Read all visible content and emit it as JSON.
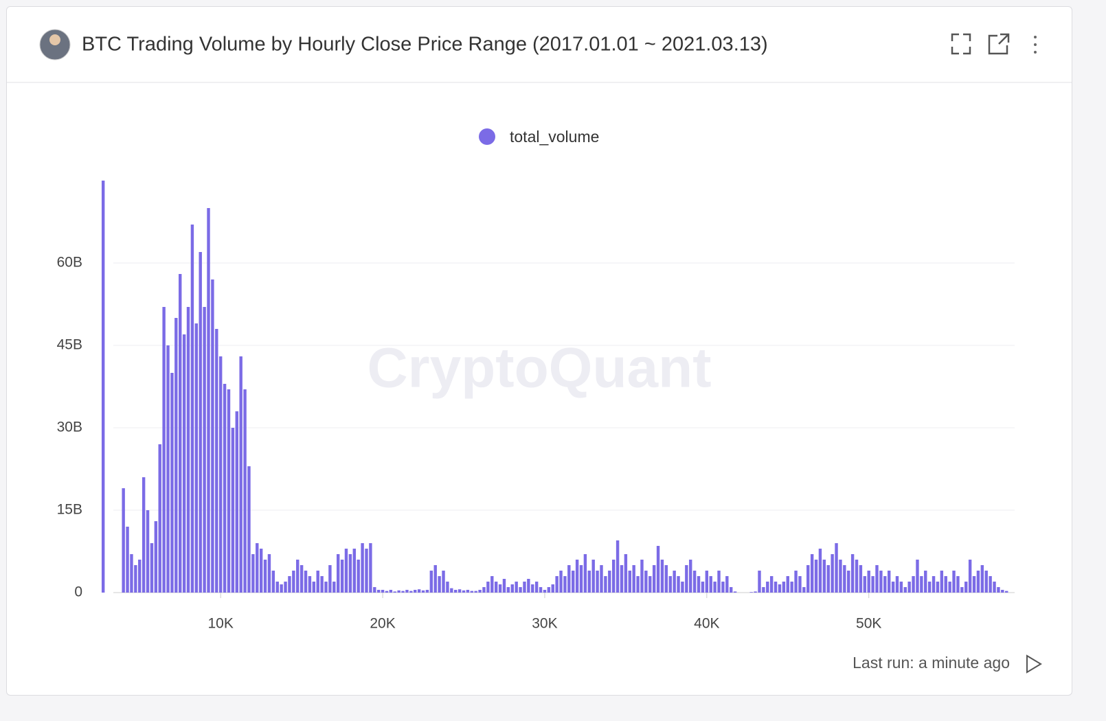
{
  "header": {
    "title": "BTC Trading Volume by Hourly Close Price Range (2017.01.01 ~ 2021.03.13)"
  },
  "chart_data": {
    "type": "bar",
    "color": "#7b6be6",
    "legend": "top",
    "grid": true,
    "watermark": "CryptoQuant",
    "series": [
      {
        "name": "total_volume",
        "color": "#7b6be6",
        "values": [
          75,
          19,
          12,
          7,
          5,
          6,
          21,
          15,
          9,
          13,
          27,
          52,
          45,
          40,
          50,
          58,
          47,
          52,
          67,
          49,
          62,
          52,
          70,
          57,
          48,
          43,
          38,
          37,
          30,
          33,
          43,
          37,
          23,
          7,
          9,
          8,
          6,
          7,
          4,
          2,
          1.5,
          2,
          3,
          4,
          6,
          5,
          4,
          3,
          2,
          4,
          3,
          2,
          5,
          2,
          7,
          6,
          8,
          7,
          8,
          6,
          9,
          8,
          9,
          1,
          0.5,
          0.5,
          0.3,
          0.5,
          0.2,
          0.4,
          0.3,
          0.5,
          0.3,
          0.5,
          0.6,
          0.4,
          0.5,
          4,
          5,
          3,
          4,
          2,
          0.8,
          0.5,
          0.6,
          0.4,
          0.5,
          0.3,
          0.3,
          0.5,
          1,
          2,
          3,
          2,
          1.5,
          2.5,
          1,
          1.5,
          2,
          1,
          2,
          2.5,
          1.5,
          2,
          1,
          0.5,
          1,
          1.5,
          3,
          4,
          3,
          5,
          4,
          6,
          5,
          7,
          4,
          6,
          4,
          5,
          3,
          4,
          6,
          9.5,
          5,
          7,
          4,
          5,
          3,
          6,
          4,
          3,
          5,
          8.5,
          6,
          5,
          3,
          4,
          3,
          2,
          5,
          6,
          4,
          3,
          2,
          4,
          3,
          2,
          4,
          2,
          3,
          1,
          0.2,
          0,
          0,
          0,
          0.1,
          0.2,
          4,
          1,
          2,
          3,
          2,
          1.5,
          2,
          3,
          2,
          4,
          3,
          1,
          5,
          7,
          6,
          8,
          6,
          5,
          7,
          9,
          6,
          5,
          4,
          7,
          6,
          5,
          3,
          4,
          3,
          5,
          4,
          3,
          4,
          2,
          3,
          2,
          1,
          2,
          3,
          6,
          3,
          4,
          2,
          3,
          2,
          4,
          3,
          2,
          4,
          3,
          1,
          2,
          6,
          3,
          4,
          5,
          4,
          3,
          2,
          1,
          0.5,
          0.3
        ]
      }
    ],
    "x": [
      2750,
      4000,
      4250,
      4500,
      4750,
      5000,
      5250,
      5500,
      5750,
      6000,
      6250,
      6500,
      6750,
      7000,
      7250,
      7500,
      7750,
      8000,
      8250,
      8500,
      8750,
      9000,
      9250,
      9500,
      9750,
      10000,
      10250,
      10500,
      10750,
      11000,
      11250,
      11500,
      11750,
      12000,
      12250,
      12500,
      12750,
      13000,
      13250,
      13500,
      13750,
      14000,
      14250,
      14500,
      14750,
      15000,
      15250,
      15500,
      15750,
      16000,
      16250,
      16500,
      16750,
      17000,
      17250,
      17500,
      17750,
      18000,
      18250,
      18500,
      18750,
      19000,
      19250,
      19500,
      19750,
      20000,
      20250,
      20500,
      20750,
      21000,
      21250,
      21500,
      21750,
      22000,
      22250,
      22500,
      22750,
      23000,
      23250,
      23500,
      23750,
      24000,
      24250,
      24500,
      24750,
      25000,
      25250,
      25500,
      25750,
      26000,
      26250,
      26500,
      26750,
      27000,
      27250,
      27500,
      27750,
      28000,
      28250,
      28500,
      28750,
      29000,
      29250,
      29500,
      29750,
      30000,
      30250,
      30500,
      30750,
      31000,
      31250,
      31500,
      31750,
      32000,
      32250,
      32500,
      32750,
      33000,
      33250,
      33500,
      33750,
      34000,
      34250,
      34500,
      34750,
      35000,
      35250,
      35500,
      35750,
      36000,
      36250,
      36500,
      36750,
      37000,
      37250,
      37500,
      37750,
      38000,
      38250,
      38500,
      38750,
      39000,
      39250,
      39500,
      39750,
      40000,
      40250,
      40500,
      40750,
      41000,
      41250,
      41500,
      41750,
      42000,
      42250,
      42500,
      42750,
      43000,
      43250,
      43500,
      43750,
      44000,
      44250,
      44500,
      44750,
      45000,
      45250,
      45500,
      45750,
      46000,
      46250,
      46500,
      46750,
      47000,
      47250,
      47500,
      47750,
      48000,
      48250,
      48500,
      48750,
      49000,
      49250,
      49500,
      49750,
      50000,
      50250,
      50500,
      50750,
      51000,
      51250,
      51500,
      51750,
      52000,
      52250,
      52500,
      52750,
      53000,
      53250,
      53500,
      53750,
      54000,
      54250,
      54500,
      54750,
      55000,
      55250,
      55500,
      55750,
      56000,
      56250,
      56500,
      56750,
      57000,
      57250,
      57500,
      57750,
      58000,
      58250,
      58500
    ],
    "xlim": [
      2700,
      59000
    ],
    "xticks": [
      {
        "value": 10000,
        "label": "10K"
      },
      {
        "value": 20000,
        "label": "20K"
      },
      {
        "value": 30000,
        "label": "30K"
      },
      {
        "value": 40000,
        "label": "40K"
      },
      {
        "value": 50000,
        "label": "50K"
      }
    ],
    "ylim": [
      0,
      75
    ],
    "yticks": [
      0,
      {
        "value": 15,
        "label": "15B"
      },
      {
        "value": 30,
        "label": "30B"
      },
      {
        "value": 45,
        "label": "45B"
      },
      {
        "value": 60,
        "label": "60B"
      }
    ]
  },
  "footer": {
    "status": "Last run: a minute ago"
  }
}
